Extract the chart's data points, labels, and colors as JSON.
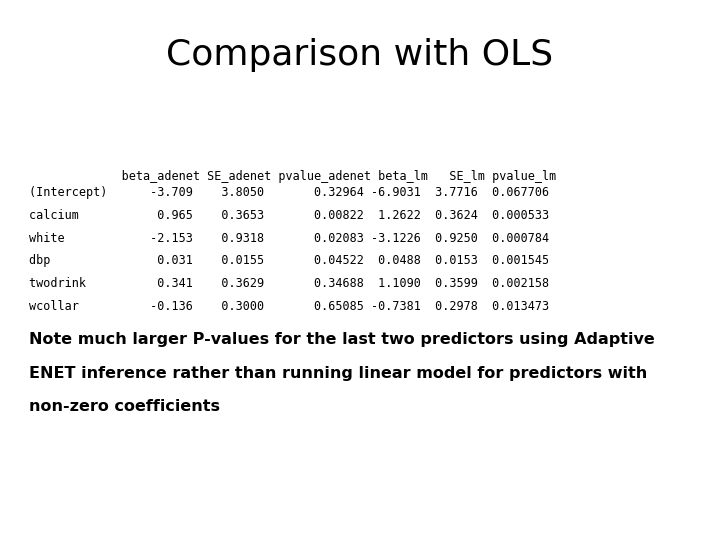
{
  "title": "Comparison with OLS",
  "title_fontsize": 26,
  "table_font": "monospace",
  "table_fontsize": 8.5,
  "note_fontsize": 11.5,
  "header": "             beta_adenet SE_adenet pvalue_adenet beta_lm   SE_lm pvalue_lm",
  "rows": [
    "(Intercept)      -3.709    3.8050       0.32964 -6.9031  3.7716  0.067706",
    "calcium           0.965    0.3653       0.00822  1.2622  0.3624  0.000533",
    "white            -2.153    0.9318       0.02083 -3.1226  0.9250  0.000784",
    "dbp               0.031    0.0155       0.04522  0.0488  0.0153  0.001545",
    "twodrink          0.341    0.3629       0.34688  1.1090  0.3599  0.002158",
    "wcollar          -0.136    0.3000       0.65085 -0.7381  0.2978  0.013473"
  ],
  "note_line1": "Note much larger P-values for the last two predictors using Adaptive",
  "note_line2": "ENET inference rather than running linear model for predictors with",
  "note_line3": "non-zero coefficients",
  "bg_color": "#ffffff",
  "text_color": "#000000"
}
